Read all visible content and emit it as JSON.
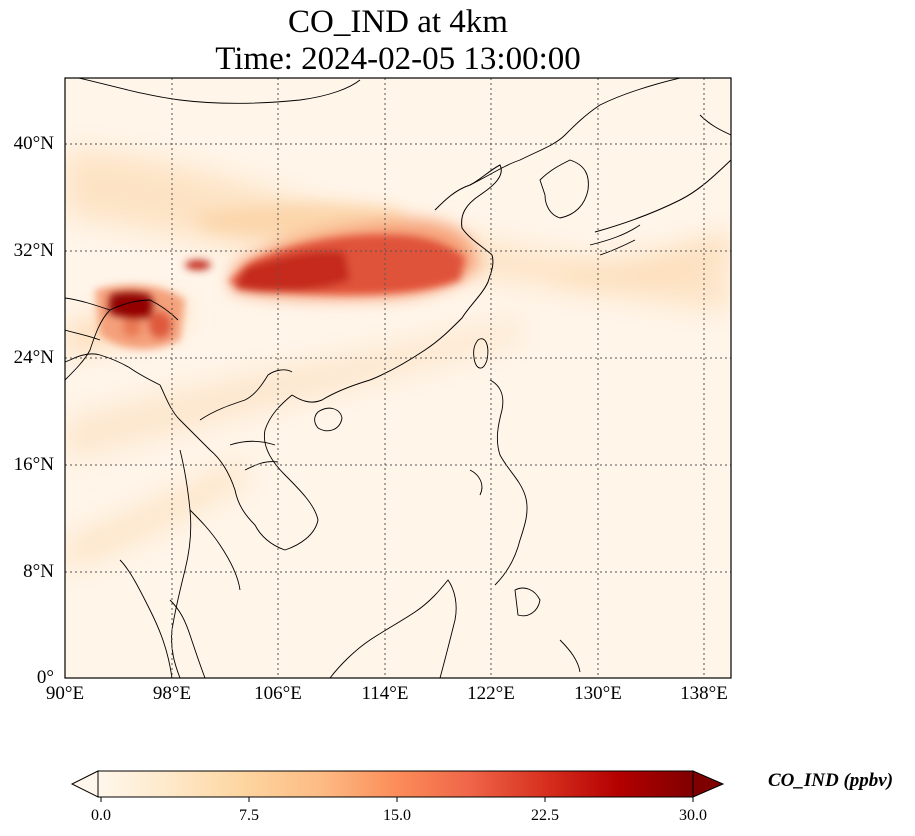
{
  "title_line1": "CO_IND at 4km",
  "title_line2": "Time: 2024-02-05 13:00:00",
  "map": {
    "lon_range": [
      90,
      140
    ],
    "lat_range": [
      0,
      44
    ],
    "lon_ticks": [
      "90°E",
      "98°E",
      "106°E",
      "114°E",
      "122°E",
      "130°E",
      "138°E"
    ],
    "lat_ticks": [
      "0°",
      "8°N",
      "16°N",
      "24°N",
      "32°N",
      "40°N"
    ],
    "gridlines": "dotted"
  },
  "colorbar": {
    "label": "CO_IND (ppbv)",
    "ticks": [
      "0.0",
      "7.5",
      "15.0",
      "22.5",
      "30.0"
    ],
    "range": [
      0,
      30
    ],
    "extend": "both",
    "colormap": "OrRd",
    "colors": [
      "#fff7ec",
      "#fee8c8",
      "#fdd49e",
      "#fdbb84",
      "#fc8d59",
      "#ef6548",
      "#d7301f",
      "#b30000",
      "#7f0000"
    ]
  }
}
